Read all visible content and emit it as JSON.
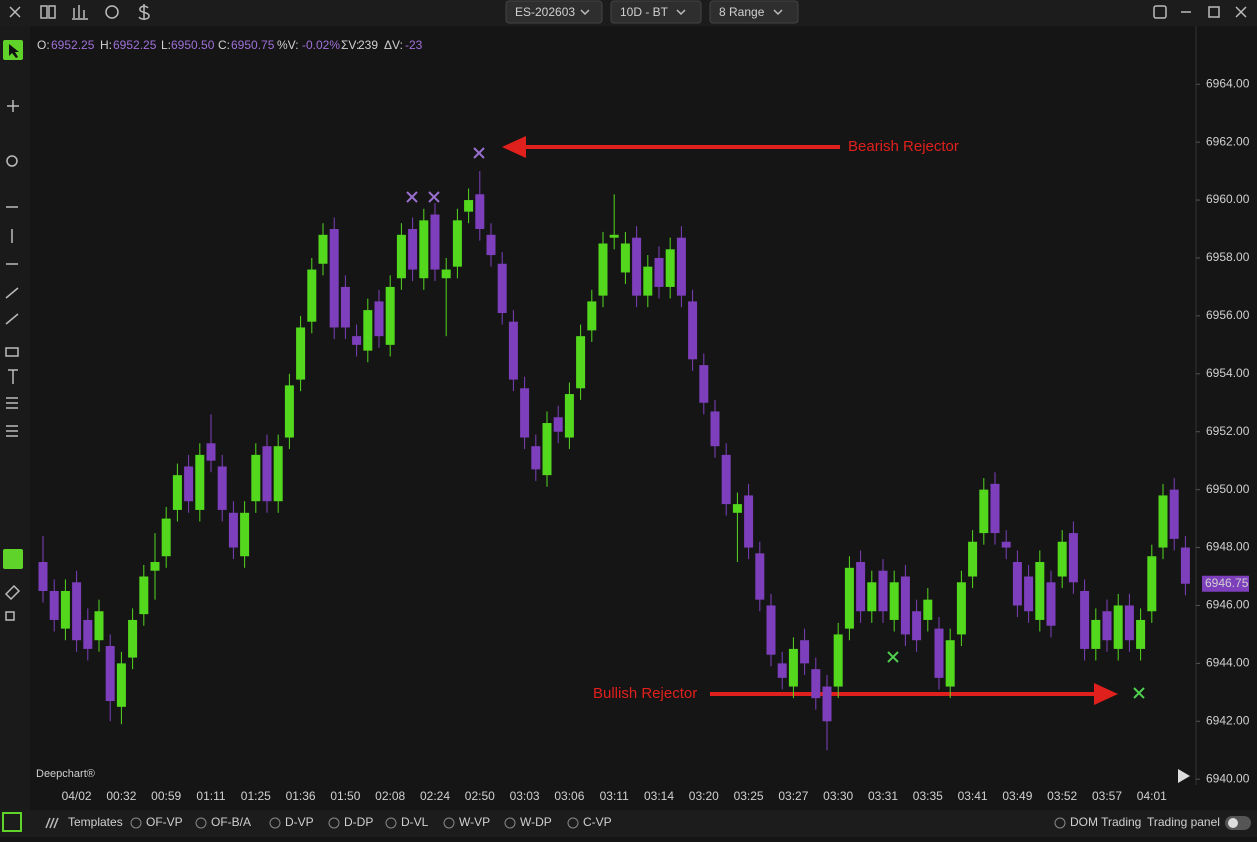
{
  "top_bar": {
    "symbol": "ES-202603",
    "period": "10D - BT",
    "bar_type": "8 Range"
  },
  "ohlc_header": {
    "o_label": "O:",
    "o": "6952.25",
    "h_label": "H:",
    "h": "6952.25",
    "l_label": "L:",
    "l": "6950.50",
    "c_label": "C:",
    "c": "6950.75",
    "v_label": "%V:",
    "v": "-0.02%",
    "sv_label": "ΣV:",
    "sv": "239",
    "dv_label": "ΔV:",
    "dv": "-23"
  },
  "watermark": "Deepchart®",
  "chart_data": {
    "type": "candlestick",
    "categories": [
      null,
      null,
      null,
      "04/02",
      null,
      null,
      null,
      "00:32",
      null,
      null,
      null,
      "00:59",
      null,
      null,
      null,
      "01:11",
      null,
      null,
      null,
      "01:25",
      null,
      null,
      null,
      "01:36",
      null,
      null,
      null,
      "01:50",
      null,
      null,
      null,
      "02:08",
      null,
      null,
      null,
      "02:24",
      null,
      null,
      null,
      "02:50",
      null,
      null,
      null,
      "03:03",
      null,
      null,
      null,
      "03:06",
      null,
      null,
      null,
      "03:11",
      null,
      null,
      null,
      "03:14",
      null,
      null,
      null,
      "03:20",
      null,
      null,
      null,
      "03:25",
      null,
      null,
      null,
      "03:27",
      null,
      null,
      null,
      "03:30",
      null,
      null,
      null,
      "03:31",
      null,
      null,
      null,
      "03:35",
      null,
      null,
      null,
      "03:41",
      null,
      null,
      null,
      "03:49",
      null,
      null,
      null,
      "03:52",
      null,
      null,
      null,
      "03:57",
      null,
      null,
      null,
      "04:01",
      null,
      null,
      null
    ],
    "open": [
      6947.5,
      6946.5,
      6945.2,
      6946.8,
      6945.5,
      6944.8,
      6944.6,
      6942.5,
      6944.2,
      6945.7,
      6947.2,
      6947.7,
      6949.3,
      6950.8,
      6949.3,
      6951.6,
      6950.8,
      6949.2,
      6947.7,
      6949.6,
      6951.5,
      6949.6,
      6951.8,
      6953.8,
      6955.8,
      6957.8,
      6959,
      6957,
      6955.3,
      6954.8,
      6956.5,
      6955,
      6957.3,
      6959,
      6957.3,
      6959.5,
      6957.3,
      6957.7,
      6959.6,
      6960.2,
      6958.8,
      6957.8,
      6955.8,
      6953.5,
      6951.5,
      6950.5,
      6952.5,
      6951.8,
      6953.5,
      6955.5,
      6956.7,
      6958.7,
      6957.5,
      6958.7,
      6956.7,
      6958,
      6957,
      6958.7,
      6956.5,
      6954.3,
      6952.7,
      6951.2,
      6949.2,
      6949.8,
      6947.8,
      6946,
      6944,
      6943.2,
      6944.8,
      6943.8,
      6943.2,
      6943.2,
      6945.2,
      6947.5,
      6945.8,
      6947.2,
      6945.5,
      6947,
      6945.8,
      6945.5,
      6945.2,
      6943.2,
      6945,
      6947,
      6948.5,
      6950.2,
      6948.2,
      6947.5,
      6947,
      6945.5,
      6946.8,
      6947,
      6948.5,
      6946.5,
      6944.5,
      6945.8,
      6944.5,
      6946,
      6944.5,
      6945.8,
      6948,
      6950,
      6948
    ],
    "high": [
      6948.4,
      6946.9,
      6946.9,
      6947.2,
      6945.9,
      6946.2,
      6945,
      6944.4,
      6945.9,
      6947.4,
      6948.5,
      6949.4,
      6950.9,
      6951.2,
      6951.6,
      6952.6,
      6951.2,
      6949.6,
      6949.6,
      6951.6,
      6951.9,
      6951.9,
      6954,
      6956,
      6958,
      6959.2,
      6959.4,
      6957.4,
      6955.7,
      6956.6,
      6956.9,
      6957.4,
      6959.2,
      6959.4,
      6959.7,
      6959.9,
      6958,
      6959.7,
      6960.4,
      6961,
      6959.2,
      6958.2,
      6956.2,
      6953.9,
      6951.9,
      6952.7,
      6952.9,
      6953.7,
      6955.7,
      6956.9,
      6958.9,
      6960.2,
      6958.9,
      6959.1,
      6958.1,
      6958.4,
      6958.7,
      6959.1,
      6956.9,
      6954.7,
      6953.1,
      6951.6,
      6949.9,
      6950.2,
      6948.2,
      6946.4,
      6944.4,
      6944.9,
      6945.2,
      6944.2,
      6943.6,
      6945.4,
      6947.7,
      6947.9,
      6947.2,
      6947.6,
      6947.2,
      6947.4,
      6946.2,
      6946.6,
      6945.6,
      6945.2,
      6947.2,
      6948.6,
      6950.4,
      6950.6,
      6948.6,
      6947.9,
      6947.4,
      6947.9,
      6947.2,
      6948.6,
      6948.9,
      6946.9,
      6945.9,
      6946.2,
      6946.4,
      6946.4,
      6945.9,
      6948.1,
      6950.2,
      6950.4,
      6948.4
    ],
    "low": [
      6946.1,
      6945.1,
      6944.8,
      6944.4,
      6944.1,
      6944.4,
      6942,
      6941.9,
      6943.8,
      6945.3,
      6946.2,
      6947.3,
      6948.9,
      6949.2,
      6948.9,
      6950.6,
      6948.9,
      6947.6,
      6947.3,
      6949.2,
      6949.2,
      6949.2,
      6951.4,
      6953.4,
      6955.4,
      6957.4,
      6955.2,
      6955.2,
      6954.6,
      6954.4,
      6954.9,
      6954.6,
      6956.9,
      6957.2,
      6956.9,
      6957.2,
      6955.3,
      6957.3,
      6959.2,
      6958.6,
      6957.7,
      6955.7,
      6953.4,
      6951.4,
      6950.3,
      6950.1,
      6951.6,
      6951.4,
      6953.1,
      6955.1,
      6956.3,
      6958.3,
      6957.1,
      6956.3,
      6956.3,
      6956.6,
      6956.6,
      6956.3,
      6954.1,
      6952.6,
      6951.1,
      6949.1,
      6947.5,
      6947.6,
      6945.8,
      6943.9,
      6943.1,
      6942.8,
      6943.6,
      6942.4,
      6941,
      6942.8,
      6944.8,
      6945.4,
      6945.4,
      6945.4,
      6945.1,
      6944.6,
      6944.4,
      6945.1,
      6943.1,
      6942.8,
      6944.6,
      6946.6,
      6948.1,
      6948.1,
      6947.6,
      6945.6,
      6945.4,
      6945.1,
      6944.9,
      6946.6,
      6946.4,
      6944.1,
      6944.1,
      6944.4,
      6944.1,
      6944.4,
      6944.1,
      6945.4,
      6947.6,
      6947.9,
      6946.35
    ],
    "close": [
      6946.5,
      6945.5,
      6946.5,
      6944.8,
      6944.5,
      6945.8,
      6942.7,
      6944,
      6945.5,
      6947,
      6947.5,
      6949,
      6950.5,
      6949.6,
      6951.2,
      6951,
      6949.3,
      6948,
      6949.2,
      6951.2,
      6949.6,
      6951.5,
      6953.6,
      6955.6,
      6957.6,
      6958.8,
      6955.6,
      6955.6,
      6955,
      6956.2,
      6955.3,
      6957,
      6958.8,
      6957.6,
      6959.3,
      6957.6,
      6957.6,
      6959.3,
      6960,
      6959,
      6958.1,
      6956.1,
      6953.8,
      6951.8,
      6950.7,
      6952.3,
      6952,
      6953.3,
      6955.3,
      6956.5,
      6958.5,
      6958.8,
      6958.5,
      6956.7,
      6957.7,
      6957,
      6958.3,
      6956.7,
      6954.5,
      6953,
      6951.5,
      6949.5,
      6949.5,
      6948,
      6946.2,
      6944.3,
      6943.5,
      6944.5,
      6944,
      6942.8,
      6942,
      6945,
      6947.3,
      6945.8,
      6946.8,
      6945.8,
      6946.8,
      6945,
      6944.8,
      6946.2,
      6943.5,
      6944.8,
      6946.8,
      6948.2,
      6950,
      6948.5,
      6948,
      6946,
      6945.8,
      6947.5,
      6945.3,
      6948.2,
      6946.8,
      6944.5,
      6945.5,
      6944.8,
      6946,
      6944.8,
      6945.5,
      6947.7,
      6949.8,
      6948.3,
      6946.75
    ],
    "up_color": "#54d81e",
    "down_color": "#7e3fbd",
    "ylim": [
      6939.8,
      6965.7
    ],
    "yticks": [
      {
        "value": 6940,
        "label": "6940.00"
      },
      {
        "value": 6942,
        "label": "6942.00"
      },
      {
        "value": 6944,
        "label": "6944.00"
      },
      {
        "value": 6946,
        "label": "6946.00"
      },
      {
        "value": 6948,
        "label": "6948.00"
      },
      {
        "value": 6950,
        "label": "6950.00"
      },
      {
        "value": 6952,
        "label": "6952.00"
      },
      {
        "value": 6954,
        "label": "6954.00"
      },
      {
        "value": 6956,
        "label": "6956.00"
      },
      {
        "value": 6958,
        "label": "6958.00"
      },
      {
        "value": 6960,
        "label": "6960.00"
      },
      {
        "value": 6962,
        "label": "6962.00"
      },
      {
        "value": 6964,
        "label": "6964.00"
      }
    ],
    "annotations": [
      "Bearish Rejector",
      "Bullish Rejector"
    ]
  },
  "bottom_bar": {
    "templates": "Templates",
    "studies": [
      "OF-VP",
      "OF-B/A",
      "D-VP",
      "D-DP",
      "D-VL",
      "W-VP",
      "W-DP",
      "C-VP"
    ],
    "dom": "DOM Trading",
    "panel": "Trading panel"
  }
}
